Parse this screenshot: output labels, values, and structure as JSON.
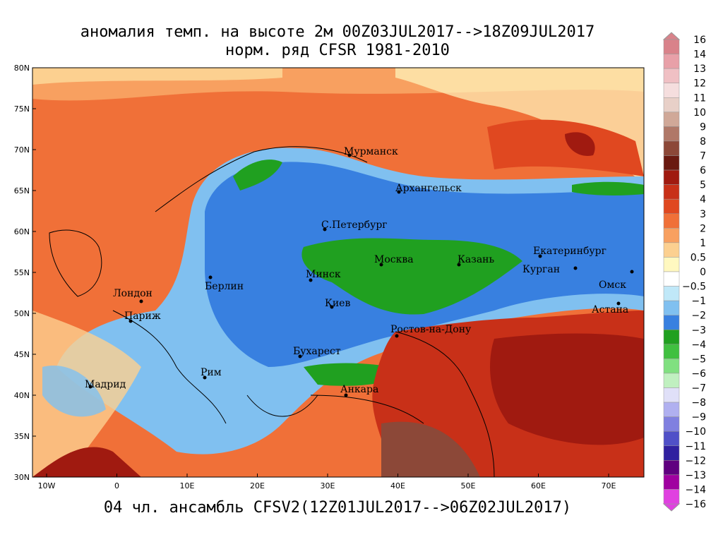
{
  "header": {
    "title": "аномалия темп. на высоте 2м 00Z03JUL2017-->18Z09JUL2017",
    "subtitle": "норм. ряд CFSR 1981-2010"
  },
  "footer": "04 чл. ансамбль CFSV2(12Z01JUL2017-->06Z02JUL2017)",
  "map": {
    "lat_labels": [
      "80N",
      "75N",
      "70N",
      "65N",
      "60N",
      "55N",
      "50N",
      "45N",
      "40N",
      "35N",
      "30N"
    ],
    "lon_labels": [
      "10W",
      "0",
      "10E",
      "20E",
      "30E",
      "40E",
      "50E",
      "60E",
      "70E"
    ],
    "cities": [
      "Мурманск",
      "Архангельск",
      "С.Петербург",
      "Москва",
      "Казань",
      "Екатеринбург",
      "Курган",
      "Омск",
      "Астана",
      "Минск",
      "Берлин",
      "Лондон",
      "Париж",
      "Киев",
      "Ростов-на-Дону",
      "Бухарест",
      "Рим",
      "Мадрид",
      "Анкара"
    ]
  },
  "colorbar": {
    "labels": [
      "16",
      "14",
      "13",
      "12",
      "11",
      "10",
      "9",
      "8",
      "7",
      "6",
      "5",
      "4",
      "3",
      "2",
      "1",
      "0.5",
      "0",
      "−0.5",
      "−1",
      "−2",
      "−3",
      "−4",
      "−5",
      "−6",
      "−7",
      "−8",
      "−9",
      "−10",
      "−11",
      "−12",
      "−13",
      "−14",
      "−16"
    ],
    "colors": [
      "#d9828a",
      "#e8a0a8",
      "#f0c0c4",
      "#f5dede",
      "#e8d0c8",
      "#d0a898",
      "#b07868",
      "#8c4838",
      "#6a1a10",
      "#a01a10",
      "#c83018",
      "#e04820",
      "#f07038",
      "#f8a060",
      "#fcd090",
      "#fff8c0",
      "#ffffff",
      "#c0e8f8",
      "#80c0f0",
      "#3880e0",
      "#20a020",
      "#40c040",
      "#80e080",
      "#c0f0c0",
      "#e0e0f8",
      "#b0b0f0",
      "#8080e0",
      "#5050c8",
      "#3020a0",
      "#600080",
      "#a000a0",
      "#e040e0"
    ]
  }
}
